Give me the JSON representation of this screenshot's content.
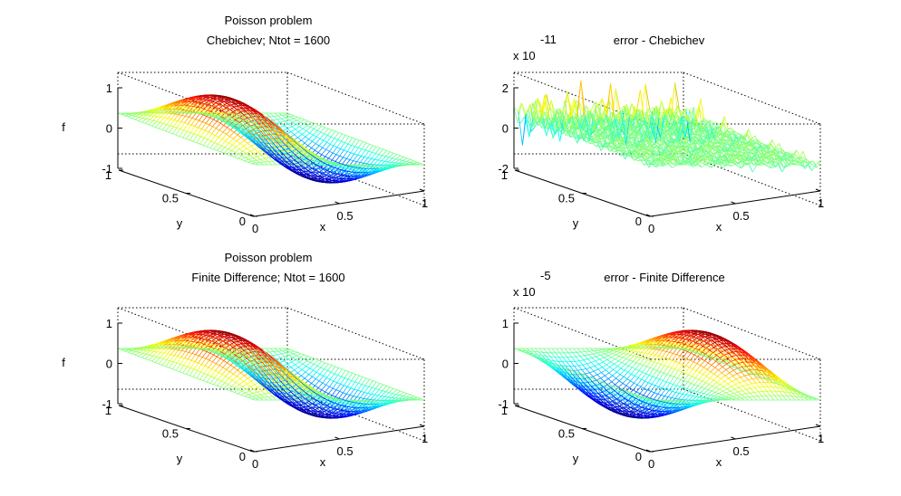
{
  "chart_data": [
    {
      "type": "surface-mesh",
      "title_lines": [
        "Poisson problem",
        "Chebichev; Ntot = 1600"
      ],
      "exponent": {
        "base": "",
        "power": ""
      },
      "xlabel": "x",
      "ylabel": "y",
      "zlabel": "f",
      "xticks": [
        "0",
        "0.5",
        "1"
      ],
      "yticks": [
        "0",
        "0.5",
        "1"
      ],
      "zticks": [
        "-1",
        "0",
        "1"
      ],
      "xlim": [
        0,
        1
      ],
      "ylim": [
        0,
        1
      ],
      "zlim": [
        -1,
        1
      ],
      "grid_points": 40,
      "function": "sin(2*pi*x)*sin(pi*y)",
      "colormap": "jet",
      "box": "dotted"
    },
    {
      "type": "surface-mesh",
      "title_lines": [
        "error - Chebichev"
      ],
      "exponent": {
        "base": "x 10",
        "power": "-11"
      },
      "xlabel": "x",
      "ylabel": "y",
      "zlabel": "",
      "xticks": [
        "0",
        "0.5",
        "1"
      ],
      "yticks": [
        "0",
        "0.5",
        "1"
      ],
      "zticks": [
        "-2",
        "0",
        "2"
      ],
      "xlim": [
        0,
        1
      ],
      "ylim": [
        0,
        1
      ],
      "zlim": [
        -2,
        2
      ],
      "grid_points": 40,
      "function": "noise, amplitude about 0.5 with spikes near y = 1",
      "colormap": "jet",
      "box": "dotted"
    },
    {
      "type": "surface-mesh",
      "title_lines": [
        "Poisson problem",
        "Finite Difference; Ntot = 1600"
      ],
      "exponent": {
        "base": "",
        "power": ""
      },
      "xlabel": "x",
      "ylabel": "y",
      "zlabel": "f",
      "xticks": [
        "0",
        "0.5",
        "1"
      ],
      "yticks": [
        "0",
        "0.5",
        "1"
      ],
      "zticks": [
        "-1",
        "0",
        "1"
      ],
      "xlim": [
        0,
        1
      ],
      "ylim": [
        0,
        1
      ],
      "zlim": [
        -1,
        1
      ],
      "grid_points": 40,
      "function": "sin(2*pi*x)*sin(pi*y)",
      "colormap": "jet",
      "box": "dotted"
    },
    {
      "type": "surface-mesh",
      "title_lines": [
        "error - Finite Difference"
      ],
      "exponent": {
        "base": "x 10",
        "power": "-5"
      },
      "xlabel": "x",
      "ylabel": "y",
      "zlabel": "",
      "xticks": [
        "0",
        "0.5",
        "1"
      ],
      "yticks": [
        "0",
        "0.5",
        "1"
      ],
      "zticks": [
        "-1",
        "0",
        "1"
      ],
      "xlim": [
        0,
        1
      ],
      "ylim": [
        0,
        1
      ],
      "zlim": [
        -1,
        1
      ],
      "grid_points": 40,
      "function": "-sin(2*pi*x)*sin(pi*y)",
      "colormap": "jet",
      "box": "dotted"
    }
  ]
}
